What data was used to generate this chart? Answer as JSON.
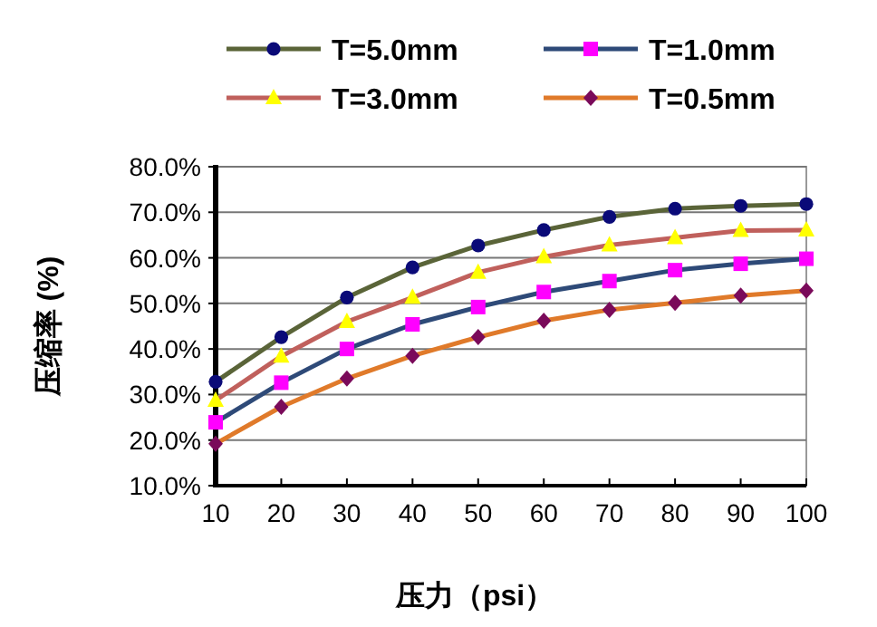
{
  "chart_data": {
    "type": "line",
    "xlabel": "压力（psi）",
    "ylabel": "压缩率 (%)",
    "x": [
      10,
      20,
      30,
      40,
      50,
      60,
      70,
      80,
      90,
      100
    ],
    "xlim": [
      10,
      100
    ],
    "xticks": [
      10,
      20,
      30,
      40,
      50,
      60,
      70,
      80,
      90,
      100
    ],
    "ylim": [
      10,
      80
    ],
    "yticks": [
      {
        "value": 10,
        "label": "10.0%"
      },
      {
        "value": 20,
        "label": "20.0%"
      },
      {
        "value": 30,
        "label": "30.0%"
      },
      {
        "value": 40,
        "label": "40.0%"
      },
      {
        "value": 50,
        "label": "50.0%"
      },
      {
        "value": 60,
        "label": "60.0%"
      },
      {
        "value": 70,
        "label": "70.0%"
      },
      {
        "value": 80,
        "label": "80.0%"
      }
    ],
    "grid": "y",
    "legend": "top",
    "line_style": "solid",
    "series": [
      {
        "name": "T=5.0mm",
        "color": "#5a6438",
        "marker": "circle",
        "colors": [
          "#0a0a78",
          "#0a0a78",
          "#0a0a78",
          "#0a0a78",
          "#0a0a78",
          "#0a0a78",
          "#0a0a78",
          "#0a0a78",
          "#0a0a78",
          "#0a0a78"
        ],
        "values": [
          32.8,
          42.6,
          51.3,
          57.9,
          62.7,
          66.1,
          69.0,
          70.8,
          71.4,
          71.8
        ]
      },
      {
        "name": "T=1.0mm",
        "color": "#2e4a78",
        "marker": "square",
        "colors": [
          "#ff00ff",
          "#ff00ff",
          "#ff00ff",
          "#ff00ff",
          "#ff00ff",
          "#ff00ff",
          "#ff00ff",
          "#ff00ff",
          "#ff00ff",
          "#ff00ff"
        ],
        "values": [
          23.9,
          32.6,
          40.0,
          45.4,
          49.2,
          52.5,
          54.9,
          57.3,
          58.7,
          59.8
        ]
      },
      {
        "name": "T=3.0mm",
        "color": "#c0605c",
        "marker": "triangle",
        "colors": [
          "#ffff00",
          "#ffff00",
          "#ffff00",
          "#ffff00",
          "#ffff00",
          "#ffff00",
          "#ffff00",
          "#ffff00",
          "#ffff00",
          "#ffff00"
        ],
        "values": [
          28.7,
          38.4,
          46.0,
          51.3,
          56.8,
          60.2,
          62.8,
          64.4,
          66.0,
          66.1
        ]
      },
      {
        "name": "T=0.5mm",
        "color": "#e07a2a",
        "marker": "diamond",
        "colors": [
          "#7a0a5a",
          "#7a0a5a",
          "#7a0a5a",
          "#7a0a5a",
          "#7a0a5a",
          "#7a0a5a",
          "#7a0a5a",
          "#7a0a5a",
          "#7a0a5a",
          "#7a0a5a"
        ],
        "values": [
          19.2,
          27.3,
          33.5,
          38.5,
          42.6,
          46.2,
          48.6,
          50.1,
          51.7,
          52.8
        ]
      }
    ]
  }
}
